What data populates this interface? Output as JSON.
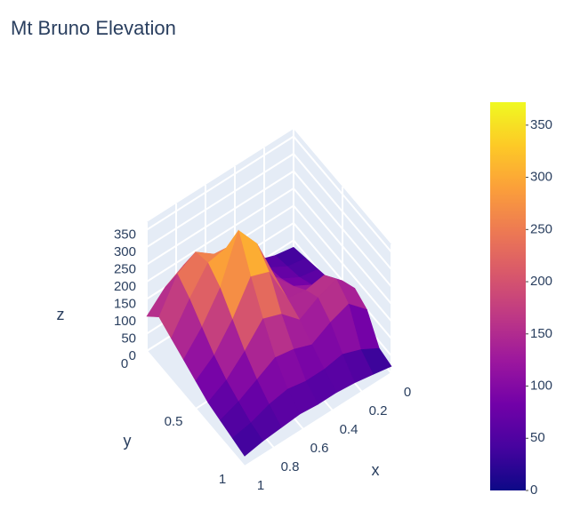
{
  "chart_data": {
    "type": "surface",
    "title": "Mt Bruno Elevation",
    "xlabel": "x",
    "ylabel": "y",
    "zlabel": "z",
    "x": [
      0,
      0.125,
      0.25,
      0.375,
      0.5,
      0.625,
      0.75,
      0.875,
      1
    ],
    "y": [
      0,
      0.125,
      0.25,
      0.375,
      0.5,
      0.625,
      0.75,
      0.875,
      1
    ],
    "z": [
      [
        30,
        40,
        60,
        80,
        110,
        150,
        180,
        150,
        100
      ],
      [
        40,
        50,
        80,
        120,
        170,
        220,
        260,
        230,
        140
      ],
      [
        50,
        60,
        90,
        140,
        220,
        280,
        270,
        200,
        120
      ],
      [
        60,
        80,
        110,
        170,
        300,
        372,
        240,
        160,
        100
      ],
      [
        100,
        150,
        140,
        150,
        260,
        280,
        190,
        120,
        80
      ],
      [
        120,
        180,
        160,
        130,
        180,
        200,
        140,
        90,
        60
      ],
      [
        100,
        150,
        130,
        100,
        120,
        130,
        100,
        70,
        50
      ],
      [
        30,
        60,
        80,
        70,
        70,
        80,
        70,
        50,
        40
      ],
      [
        20,
        30,
        40,
        45,
        45,
        50,
        45,
        40,
        30
      ]
    ],
    "xlim": [
      0,
      1
    ],
    "ylim": [
      0,
      1
    ],
    "zlim": [
      0,
      372
    ],
    "xticks": [
      0,
      0.2,
      0.4,
      0.6,
      0.8,
      1
    ],
    "yticks": [
      0,
      0.5,
      1
    ],
    "zticks": [
      0,
      50,
      100,
      150,
      200,
      250,
      300,
      350
    ],
    "clim": [
      0,
      372
    ],
    "colorbar_ticks": [
      0,
      50,
      100,
      150,
      200,
      250,
      300,
      350
    ],
    "colorscale": [
      "#0d0887",
      "#46039f",
      "#7201a8",
      "#9c179e",
      "#bd3786",
      "#d8576b",
      "#ed7953",
      "#fb9f3a",
      "#fdca26",
      "#f0f921"
    ],
    "grid": true
  }
}
